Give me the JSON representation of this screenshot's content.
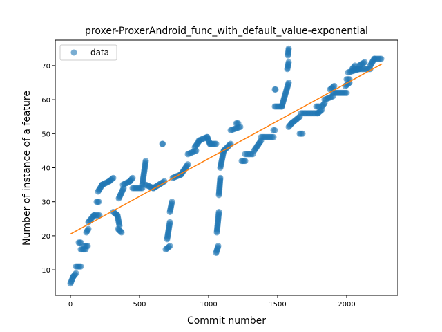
{
  "chart_data": {
    "type": "scatter",
    "title": "proxer-ProxerAndroid_func_with_default_value-exponential",
    "xlabel": "Commit number",
    "ylabel": "Number of instance of a feature",
    "xlim": [
      -110,
      2370
    ],
    "ylim": [
      2.5,
      77.5
    ],
    "xticks": [
      0,
      500,
      1000,
      1500,
      2000
    ],
    "yticks": [
      10,
      20,
      30,
      40,
      50,
      60,
      70
    ],
    "legend": {
      "position": "top-left",
      "entries": [
        "data"
      ]
    },
    "colors": {
      "points": "#1f77b4",
      "fit": "#ff7f0e"
    },
    "series": [
      {
        "name": "data",
        "kind": "scatter",
        "segments": [
          [
            0,
            6,
            20,
            8
          ],
          [
            20,
            8,
            40,
            9
          ],
          [
            40,
            11,
            75,
            11
          ],
          [
            60,
            18,
            75,
            18
          ],
          [
            75,
            16,
            110,
            16
          ],
          [
            100,
            17,
            125,
            17
          ],
          [
            115,
            21,
            130,
            22
          ],
          [
            130,
            24,
            170,
            26
          ],
          [
            170,
            26,
            210,
            26
          ],
          [
            190,
            30,
            205,
            30
          ],
          [
            200,
            33,
            230,
            35
          ],
          [
            230,
            35,
            280,
            36
          ],
          [
            280,
            36,
            310,
            37
          ],
          [
            310,
            27,
            340,
            26
          ],
          [
            340,
            26,
            355,
            23
          ],
          [
            345,
            22,
            370,
            21
          ],
          [
            350,
            31,
            385,
            34
          ],
          [
            380,
            35,
            430,
            36
          ],
          [
            430,
            36,
            450,
            37
          ],
          [
            450,
            34,
            520,
            34
          ],
          [
            520,
            35,
            545,
            42
          ],
          [
            545,
            35,
            600,
            34
          ],
          [
            600,
            34,
            680,
            36
          ],
          [
            665,
            47,
            668,
            47
          ],
          [
            690,
            16,
            720,
            17
          ],
          [
            700,
            19,
            720,
            24
          ],
          [
            720,
            27,
            735,
            30
          ],
          [
            740,
            37,
            800,
            38
          ],
          [
            800,
            38,
            850,
            41
          ],
          [
            850,
            44,
            910,
            45
          ],
          [
            900,
            46,
            935,
            48
          ],
          [
            930,
            48,
            990,
            49
          ],
          [
            990,
            49,
            1010,
            47
          ],
          [
            1010,
            47,
            1055,
            47
          ],
          [
            1055,
            15,
            1070,
            17
          ],
          [
            1060,
            21,
            1075,
            27
          ],
          [
            1075,
            32,
            1085,
            37
          ],
          [
            1085,
            40,
            1110,
            45
          ],
          [
            1110,
            45,
            1160,
            47
          ],
          [
            1160,
            51,
            1230,
            52
          ],
          [
            1200,
            53,
            1215,
            53
          ],
          [
            1240,
            42,
            1265,
            42
          ],
          [
            1265,
            44,
            1320,
            44
          ],
          [
            1330,
            45,
            1380,
            48
          ],
          [
            1380,
            49,
            1470,
            49
          ],
          [
            1470,
            51,
            1480,
            51
          ],
          [
            1480,
            58,
            1530,
            58
          ],
          [
            1480,
            63,
            1485,
            63
          ],
          [
            1530,
            58,
            1580,
            65
          ],
          [
            1570,
            69,
            1580,
            71
          ],
          [
            1575,
            73,
            1580,
            75
          ],
          [
            1580,
            52,
            1600,
            53
          ],
          [
            1600,
            53,
            1660,
            55
          ],
          [
            1660,
            50,
            1680,
            50
          ],
          [
            1670,
            56,
            1790,
            56
          ],
          [
            1790,
            56,
            1820,
            57
          ],
          [
            1780,
            58,
            1800,
            58
          ],
          [
            1820,
            58,
            1840,
            59
          ],
          [
            1840,
            60,
            1900,
            61
          ],
          [
            1880,
            63,
            1910,
            64
          ],
          [
            1900,
            62,
            2000,
            62
          ],
          [
            1990,
            64,
            2020,
            65
          ],
          [
            2000,
            66,
            2020,
            66
          ],
          [
            2010,
            68,
            2090,
            69
          ],
          [
            2040,
            69,
            2060,
            70
          ],
          [
            2060,
            69,
            2170,
            69
          ],
          [
            2090,
            70,
            2130,
            71
          ],
          [
            2170,
            70,
            2200,
            72
          ],
          [
            2200,
            72,
            2250,
            72
          ]
        ]
      },
      {
        "name": "fit",
        "kind": "line",
        "x": [
          0,
          2255
        ],
        "y": [
          20.5,
          70.5
        ]
      }
    ]
  }
}
